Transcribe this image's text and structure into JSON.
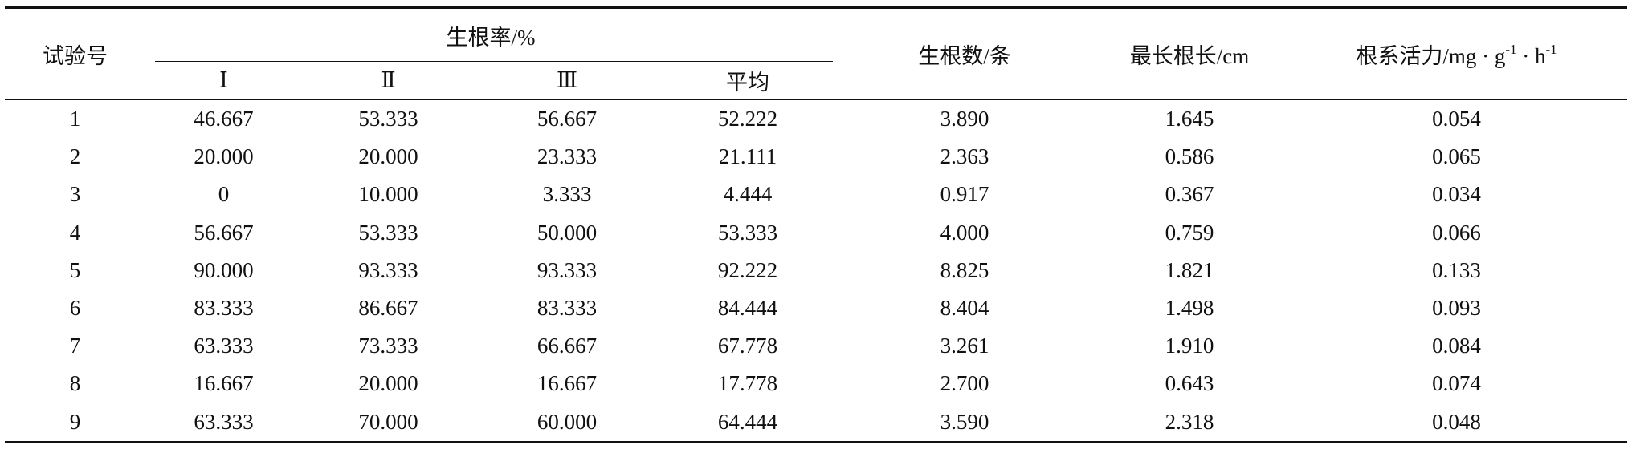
{
  "table": {
    "headers": {
      "trial": "试验号",
      "rooting_rate": "生根率/%",
      "rep1": "Ⅰ",
      "rep2": "Ⅱ",
      "rep3": "Ⅲ",
      "mean": "平均",
      "root_count": "生根数/条",
      "longest_root": "最长根长/cm",
      "root_activity_a": "根系活力/mg · g",
      "root_activity_sup1": "-1",
      "root_activity_b": " · h",
      "root_activity_sup2": "-1"
    },
    "rows": [
      [
        "1",
        "46.667",
        "53.333",
        "56.667",
        "52.222",
        "3.890",
        "1.645",
        "0.054"
      ],
      [
        "2",
        "20.000",
        "20.000",
        "23.333",
        "21.111",
        "2.363",
        "0.586",
        "0.065"
      ],
      [
        "3",
        "0",
        "10.000",
        "3.333",
        "4.444",
        "0.917",
        "0.367",
        "0.034"
      ],
      [
        "4",
        "56.667",
        "53.333",
        "50.000",
        "53.333",
        "4.000",
        "0.759",
        "0.066"
      ],
      [
        "5",
        "90.000",
        "93.333",
        "93.333",
        "92.222",
        "8.825",
        "1.821",
        "0.133"
      ],
      [
        "6",
        "83.333",
        "86.667",
        "83.333",
        "84.444",
        "8.404",
        "1.498",
        "0.093"
      ],
      [
        "7",
        "63.333",
        "73.333",
        "66.667",
        "67.778",
        "3.261",
        "1.910",
        "0.084"
      ],
      [
        "8",
        "16.667",
        "20.000",
        "16.667",
        "17.778",
        "2.700",
        "0.643",
        "0.074"
      ],
      [
        "9",
        "63.333",
        "70.000",
        "60.000",
        "64.444",
        "3.590",
        "2.318",
        "0.048"
      ]
    ]
  }
}
